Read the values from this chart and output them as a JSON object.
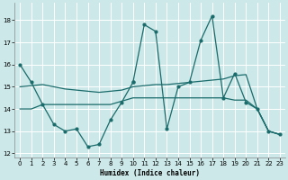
{
  "xlabel": "Humidex (Indice chaleur)",
  "bg_color": "#cce8e8",
  "grid_color": "#ffffff",
  "line_color": "#1a6b6b",
  "xlim": [
    -0.5,
    23.5
  ],
  "ylim": [
    11.8,
    18.8
  ],
  "yticks": [
    12,
    13,
    14,
    15,
    16,
    17,
    18
  ],
  "xticks": [
    0,
    1,
    2,
    3,
    4,
    5,
    6,
    7,
    8,
    9,
    10,
    11,
    12,
    13,
    14,
    15,
    16,
    17,
    18,
    19,
    20,
    21,
    22,
    23
  ],
  "line1_x": [
    0,
    1,
    2,
    3,
    4,
    5,
    6,
    7,
    8,
    9,
    10
  ],
  "line1_y": [
    16.0,
    15.2,
    14.2,
    13.3,
    13.0,
    13.1,
    12.3,
    12.4,
    13.5,
    14.3,
    15.2
  ],
  "line2_x": [
    10,
    11,
    12,
    13,
    14,
    15,
    16,
    17,
    18,
    19,
    20,
    21,
    22,
    23
  ],
  "line2_y": [
    15.2,
    17.8,
    17.5,
    13.1,
    15.0,
    15.2,
    17.1,
    18.2,
    14.5,
    15.6,
    14.3,
    14.0,
    13.0,
    12.85
  ],
  "line3_x": [
    0,
    1,
    2,
    3,
    4,
    5,
    6,
    7,
    8,
    9,
    10,
    11,
    12,
    13,
    14,
    15,
    16,
    17,
    18,
    19,
    20,
    21,
    22,
    23
  ],
  "line3_y": [
    14.0,
    14.0,
    14.2,
    14.2,
    14.2,
    14.2,
    14.2,
    14.2,
    14.2,
    14.35,
    14.5,
    14.5,
    14.5,
    14.5,
    14.5,
    14.5,
    14.5,
    14.5,
    14.5,
    14.4,
    14.4,
    14.0,
    13.0,
    12.85
  ],
  "line4_x": [
    0,
    1,
    2,
    3,
    4,
    5,
    6,
    7,
    8,
    9,
    10,
    11,
    12,
    13,
    14,
    15,
    16,
    17,
    18,
    19,
    20,
    21,
    22,
    23
  ],
  "line4_y": [
    15.0,
    15.05,
    15.1,
    15.0,
    14.9,
    14.85,
    14.8,
    14.75,
    14.8,
    14.85,
    15.0,
    15.05,
    15.1,
    15.1,
    15.15,
    15.2,
    15.25,
    15.3,
    15.35,
    15.5,
    15.55,
    14.0,
    13.0,
    12.85
  ]
}
